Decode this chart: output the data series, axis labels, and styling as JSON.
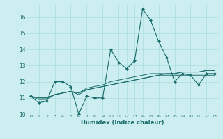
{
  "xlabel": "Humidex (Indice chaleur)",
  "ylabel": "",
  "bg_color": "#cceef0",
  "grid_color": "#aadddd",
  "line_color": "#1a6b6b",
  "xlim": [
    -0.5,
    23.5
  ],
  "ylim": [
    10,
    16.8
  ],
  "yticks": [
    10,
    11,
    12,
    13,
    14,
    15,
    16
  ],
  "xticks": [
    0,
    1,
    2,
    3,
    4,
    5,
    6,
    7,
    8,
    9,
    10,
    11,
    12,
    13,
    14,
    15,
    16,
    17,
    18,
    19,
    20,
    21,
    22,
    23
  ],
  "series": [
    [
      11.1,
      10.7,
      10.8,
      12.0,
      12.0,
      11.7,
      10.0,
      11.1,
      11.0,
      11.0,
      14.0,
      13.2,
      12.8,
      13.3,
      16.5,
      15.8,
      14.5,
      13.5,
      12.0,
      12.5,
      12.4,
      11.8,
      12.5,
      12.5
    ],
    [
      11.1,
      10.9,
      10.9,
      11.2,
      11.3,
      11.4,
      11.2,
      11.5,
      11.6,
      11.7,
      11.8,
      11.9,
      12.0,
      12.1,
      12.2,
      12.3,
      12.4,
      12.5,
      12.5,
      12.6,
      12.6,
      12.6,
      12.7,
      12.7
    ],
    [
      11.1,
      11.0,
      11.0,
      11.2,
      11.3,
      11.4,
      11.3,
      11.5,
      11.6,
      11.7,
      11.8,
      11.9,
      12.0,
      12.1,
      12.2,
      12.3,
      12.4,
      12.4,
      12.4,
      12.4,
      12.4,
      12.4,
      12.4,
      12.4
    ],
    [
      11.1,
      11.0,
      11.0,
      11.2,
      11.3,
      11.4,
      11.3,
      11.6,
      11.7,
      11.8,
      12.0,
      12.1,
      12.2,
      12.3,
      12.4,
      12.5,
      12.5,
      12.5,
      12.5,
      12.6,
      12.6,
      12.6,
      12.7,
      12.7
    ]
  ]
}
